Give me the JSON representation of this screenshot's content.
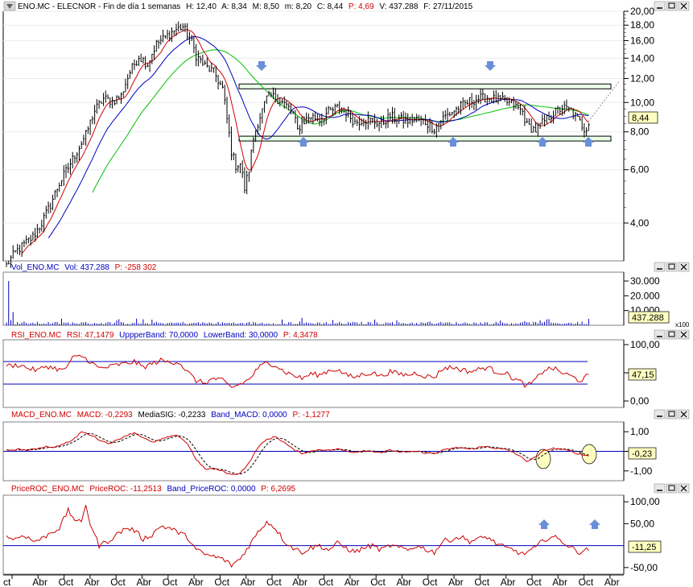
{
  "colors": {
    "price": "#000000",
    "ma_short": "#d00000",
    "ma_mid": "#0000c0",
    "ma_long": "#00c000",
    "volume": "#0000c0",
    "indicator": "#cc0000",
    "bands": "#0000c0",
    "arrow": "#6a8fd8",
    "channel": "#000000",
    "circle_fill": "#ffffc0",
    "label_box": "#ffffc0"
  },
  "x_axis": {
    "labels": [
      "ct",
      "Abr",
      "Oct",
      "Abr",
      "Oct",
      "Abr",
      "Oct",
      "Abr",
      "Oct",
      "Abr",
      "Oct",
      "Abr",
      "Oct",
      "Abr",
      "Oct",
      "Abr",
      "Oct",
      "Abr",
      "Oct",
      "Abr",
      "Oct",
      "Abr",
      "Oct",
      "Abr"
    ]
  },
  "panels": {
    "price": {
      "header": [
        "ENO.MC - ELECNOR - Fin de día 1 semanas",
        "H: 12,40",
        "A: 8,34",
        "M: 8,50",
        "m: 8,20",
        "C: 8,44"
      ],
      "header_change": "P: 4,69",
      "header_tail": [
        "V: 437.288",
        "F: 27/11/2015"
      ],
      "ticks": [
        "20,00",
        "18,00",
        "16,00",
        "14,00",
        "12,00",
        "10,00",
        "8,00",
        "6,00",
        "4,00"
      ],
      "last_label": "8,44",
      "close": 8.44
    },
    "volume": {
      "header_name": "Vol_ENO.MC",
      "header_value": "Vol: 437.288",
      "header_change": "P: -258 302",
      "ticks": [
        "30.000",
        "20.000",
        "10.000"
      ],
      "last_label": "437.288",
      "multiplier": "x100"
    },
    "rsi": {
      "header_name": "RSI_ENO.MC",
      "header_value": "RSI: 47,1479",
      "header_upper": "UppperBand: 70,0000",
      "header_lower": "LowerBand: 30,0000",
      "header_change": "P: 4,3478",
      "ticks": [
        "100,00",
        "50,00",
        "0,00"
      ],
      "last_label": "47,15"
    },
    "macd": {
      "header_name": "MACD_ENO.MC",
      "header_value": "MACD: -0,2293",
      "header_signal": "MediaSIG: -0,2233",
      "header_band": "Band_MACD: 0,0000",
      "header_change": "P: -1,1277",
      "ticks": [
        "1,00",
        "0,00",
        "-1,00"
      ],
      "last_label": "-0,23"
    },
    "roc": {
      "header_name": "PriceROC_ENO.MC",
      "header_value": "PriceROC: -11,2513",
      "header_band": "Band_PriceROC: 0,0000",
      "header_change": "P: 6,2695",
      "ticks": [
        "100,00",
        "50,00",
        "-50,00"
      ],
      "last_label": "-11,25"
    }
  },
  "chart_data": {
    "type": "line",
    "interval": "1 semanas",
    "symbol": "ENO.MC",
    "name": "ELECNOR",
    "last_bar": {
      "high": 12.4,
      "open": 8.34,
      "mid": 8.5,
      "low": 8.2,
      "close": 8.44,
      "change_pct": 4.69,
      "volume": 437288,
      "date": "27/11/2015"
    },
    "price_ylim": [
      3.0,
      20.0
    ],
    "price_scale": "log",
    "channel": {
      "upper": 11.3,
      "lower": 7.6
    },
    "price_anchors": [
      [
        0,
        2.9
      ],
      [
        4,
        3.2
      ],
      [
        8,
        3.4
      ],
      [
        12,
        3.6
      ],
      [
        16,
        4.0
      ],
      [
        20,
        4.6
      ],
      [
        24,
        5.4
      ],
      [
        28,
        6.1
      ],
      [
        32,
        6.9
      ],
      [
        36,
        7.8
      ],
      [
        40,
        9.4
      ],
      [
        44,
        10.3
      ],
      [
        48,
        10.1
      ],
      [
        52,
        10.5
      ],
      [
        56,
        12.6
      ],
      [
        60,
        14.2
      ],
      [
        64,
        13.4
      ],
      [
        68,
        15.6
      ],
      [
        72,
        16.4
      ],
      [
        76,
        17.3
      ],
      [
        80,
        17.8
      ],
      [
        84,
        15.8
      ],
      [
        86,
        14.3
      ],
      [
        90,
        13.2
      ],
      [
        94,
        12.6
      ],
      [
        98,
        11.1
      ],
      [
        100,
        8.8
      ],
      [
        102,
        6.9
      ],
      [
        104,
        6.2
      ],
      [
        106,
        6.3
      ],
      [
        108,
        5.2
      ],
      [
        110,
        6.0
      ],
      [
        112,
        7.6
      ],
      [
        114,
        8.6
      ],
      [
        116,
        9.4
      ],
      [
        118,
        10.3
      ],
      [
        120,
        10.5
      ],
      [
        124,
        10.2
      ],
      [
        128,
        9.6
      ],
      [
        130,
        9.2
      ],
      [
        132,
        8.1
      ],
      [
        134,
        8.6
      ],
      [
        138,
        9.0
      ],
      [
        142,
        8.8
      ],
      [
        146,
        9.3
      ],
      [
        150,
        9.6
      ],
      [
        154,
        9.3
      ],
      [
        158,
        8.6
      ],
      [
        162,
        8.8
      ],
      [
        166,
        8.7
      ],
      [
        170,
        8.5
      ],
      [
        174,
        9.0
      ],
      [
        178,
        8.8
      ],
      [
        182,
        8.7
      ],
      [
        186,
        8.8
      ],
      [
        190,
        8.6
      ],
      [
        194,
        8.2
      ],
      [
        198,
        8.9
      ],
      [
        202,
        9.3
      ],
      [
        206,
        9.7
      ],
      [
        210,
        10.1
      ],
      [
        214,
        10.3
      ],
      [
        218,
        10.4
      ],
      [
        222,
        10.2
      ],
      [
        226,
        10.1
      ],
      [
        230,
        9.8
      ],
      [
        234,
        9.3
      ],
      [
        236,
        8.4
      ],
      [
        240,
        8.1
      ],
      [
        244,
        8.7
      ],
      [
        248,
        9.2
      ],
      [
        252,
        9.6
      ],
      [
        256,
        9.4
      ],
      [
        260,
        8.6
      ],
      [
        262,
        8.2
      ],
      [
        264,
        8.44
      ]
    ],
    "volume_ylim": [
      0,
      36000
    ],
    "rsi_ylim": [
      0,
      100
    ],
    "rsi_bands": [
      70,
      30
    ],
    "rsi_anchors": [
      [
        0,
        62
      ],
      [
        6,
        64
      ],
      [
        10,
        58
      ],
      [
        14,
        54
      ],
      [
        18,
        62
      ],
      [
        22,
        58
      ],
      [
        26,
        54
      ],
      [
        30,
        76
      ],
      [
        34,
        80
      ],
      [
        38,
        70
      ],
      [
        42,
        58
      ],
      [
        46,
        60
      ],
      [
        50,
        64
      ],
      [
        54,
        66
      ],
      [
        58,
        70
      ],
      [
        62,
        60
      ],
      [
        66,
        66
      ],
      [
        70,
        72
      ],
      [
        74,
        68
      ],
      [
        78,
        70
      ],
      [
        82,
        52
      ],
      [
        86,
        36
      ],
      [
        90,
        32
      ],
      [
        94,
        40
      ],
      [
        98,
        36
      ],
      [
        102,
        24
      ],
      [
        106,
        30
      ],
      [
        110,
        38
      ],
      [
        114,
        58
      ],
      [
        118,
        68
      ],
      [
        122,
        64
      ],
      [
        126,
        52
      ],
      [
        130,
        46
      ],
      [
        134,
        40
      ],
      [
        138,
        48
      ],
      [
        142,
        46
      ],
      [
        146,
        54
      ],
      [
        150,
        56
      ],
      [
        154,
        46
      ],
      [
        158,
        42
      ],
      [
        162,
        48
      ],
      [
        166,
        50
      ],
      [
        170,
        44
      ],
      [
        174,
        52
      ],
      [
        178,
        48
      ],
      [
        182,
        46
      ],
      [
        186,
        50
      ],
      [
        190,
        44
      ],
      [
        194,
        42
      ],
      [
        198,
        58
      ],
      [
        202,
        60
      ],
      [
        206,
        56
      ],
      [
        210,
        52
      ],
      [
        214,
        56
      ],
      [
        218,
        60
      ],
      [
        222,
        52
      ],
      [
        226,
        50
      ],
      [
        230,
        40
      ],
      [
        234,
        32
      ],
      [
        236,
        26
      ],
      [
        240,
        38
      ],
      [
        244,
        56
      ],
      [
        248,
        58
      ],
      [
        252,
        50
      ],
      [
        256,
        44
      ],
      [
        260,
        36
      ],
      [
        262,
        40
      ],
      [
        264,
        47.15
      ]
    ],
    "macd_ylim": [
      -1.5,
      1.5
    ],
    "macd_anchors": [
      [
        0,
        0.05
      ],
      [
        6,
        0.1
      ],
      [
        10,
        0.05
      ],
      [
        14,
        0.15
      ],
      [
        18,
        0.25
      ],
      [
        22,
        0.2
      ],
      [
        26,
        0.4
      ],
      [
        30,
        0.55
      ],
      [
        34,
        1.0
      ],
      [
        38,
        0.85
      ],
      [
        42,
        0.6
      ],
      [
        46,
        0.4
      ],
      [
        50,
        0.55
      ],
      [
        54,
        0.8
      ],
      [
        58,
        0.95
      ],
      [
        62,
        0.7
      ],
      [
        66,
        0.45
      ],
      [
        70,
        0.6
      ],
      [
        74,
        0.75
      ],
      [
        78,
        0.8
      ],
      [
        82,
        0.4
      ],
      [
        86,
        -0.4
      ],
      [
        90,
        -0.9
      ],
      [
        94,
        -0.9
      ],
      [
        98,
        -1.0
      ],
      [
        102,
        -1.2
      ],
      [
        106,
        -1.1
      ],
      [
        110,
        -0.6
      ],
      [
        114,
        0.2
      ],
      [
        118,
        0.6
      ],
      [
        122,
        0.75
      ],
      [
        126,
        0.45
      ],
      [
        130,
        0.1
      ],
      [
        134,
        -0.1
      ],
      [
        138,
        0.0
      ],
      [
        142,
        0.1
      ],
      [
        146,
        0.05
      ],
      [
        150,
        0.12
      ],
      [
        154,
        0.02
      ],
      [
        158,
        -0.05
      ],
      [
        162,
        0.05
      ],
      [
        166,
        0.0
      ],
      [
        170,
        -0.05
      ],
      [
        174,
        0.05
      ],
      [
        178,
        -0.02
      ],
      [
        182,
        -0.05
      ],
      [
        186,
        0.0
      ],
      [
        190,
        -0.08
      ],
      [
        194,
        -0.12
      ],
      [
        198,
        0.05
      ],
      [
        202,
        0.15
      ],
      [
        206,
        0.2
      ],
      [
        210,
        0.1
      ],
      [
        214,
        0.2
      ],
      [
        218,
        0.25
      ],
      [
        222,
        0.15
      ],
      [
        226,
        0.1
      ],
      [
        230,
        -0.05
      ],
      [
        234,
        -0.35
      ],
      [
        236,
        -0.5
      ],
      [
        240,
        -0.3
      ],
      [
        244,
        0.05
      ],
      [
        248,
        0.15
      ],
      [
        252,
        0.1
      ],
      [
        256,
        0.0
      ],
      [
        260,
        -0.15
      ],
      [
        262,
        -0.2
      ],
      [
        264,
        -0.23
      ]
    ],
    "roc_ylim": [
      -65,
      115
    ],
    "roc_anchors": [
      [
        0,
        20
      ],
      [
        4,
        15
      ],
      [
        8,
        25
      ],
      [
        12,
        10
      ],
      [
        16,
        15
      ],
      [
        20,
        30
      ],
      [
        24,
        40
      ],
      [
        28,
        80
      ],
      [
        30,
        65
      ],
      [
        34,
        50
      ],
      [
        36,
        95
      ],
      [
        38,
        50
      ],
      [
        42,
        0
      ],
      [
        46,
        10
      ],
      [
        50,
        25
      ],
      [
        54,
        40
      ],
      [
        58,
        35
      ],
      [
        62,
        15
      ],
      [
        66,
        25
      ],
      [
        70,
        45
      ],
      [
        74,
        40
      ],
      [
        78,
        30
      ],
      [
        82,
        20
      ],
      [
        86,
        -10
      ],
      [
        90,
        -20
      ],
      [
        94,
        -25
      ],
      [
        98,
        -30
      ],
      [
        102,
        -45
      ],
      [
        106,
        -30
      ],
      [
        110,
        0
      ],
      [
        114,
        30
      ],
      [
        118,
        55
      ],
      [
        122,
        40
      ],
      [
        126,
        10
      ],
      [
        130,
        -5
      ],
      [
        134,
        -15
      ],
      [
        138,
        -5
      ],
      [
        142,
        0
      ],
      [
        146,
        -10
      ],
      [
        150,
        5
      ],
      [
        154,
        -5
      ],
      [
        158,
        -15
      ],
      [
        162,
        -5
      ],
      [
        166,
        0
      ],
      [
        170,
        -10
      ],
      [
        174,
        0
      ],
      [
        178,
        -5
      ],
      [
        182,
        -10
      ],
      [
        186,
        0
      ],
      [
        190,
        -8
      ],
      [
        194,
        -15
      ],
      [
        198,
        10
      ],
      [
        202,
        15
      ],
      [
        206,
        20
      ],
      [
        210,
        10
      ],
      [
        214,
        15
      ],
      [
        218,
        20
      ],
      [
        222,
        5
      ],
      [
        226,
        -5
      ],
      [
        230,
        -10
      ],
      [
        234,
        -20
      ],
      [
        236,
        -15
      ],
      [
        240,
        -5
      ],
      [
        244,
        15
      ],
      [
        248,
        20
      ],
      [
        252,
        10
      ],
      [
        256,
        -5
      ],
      [
        260,
        -15
      ],
      [
        262,
        -10
      ],
      [
        264,
        -11.25
      ]
    ]
  }
}
